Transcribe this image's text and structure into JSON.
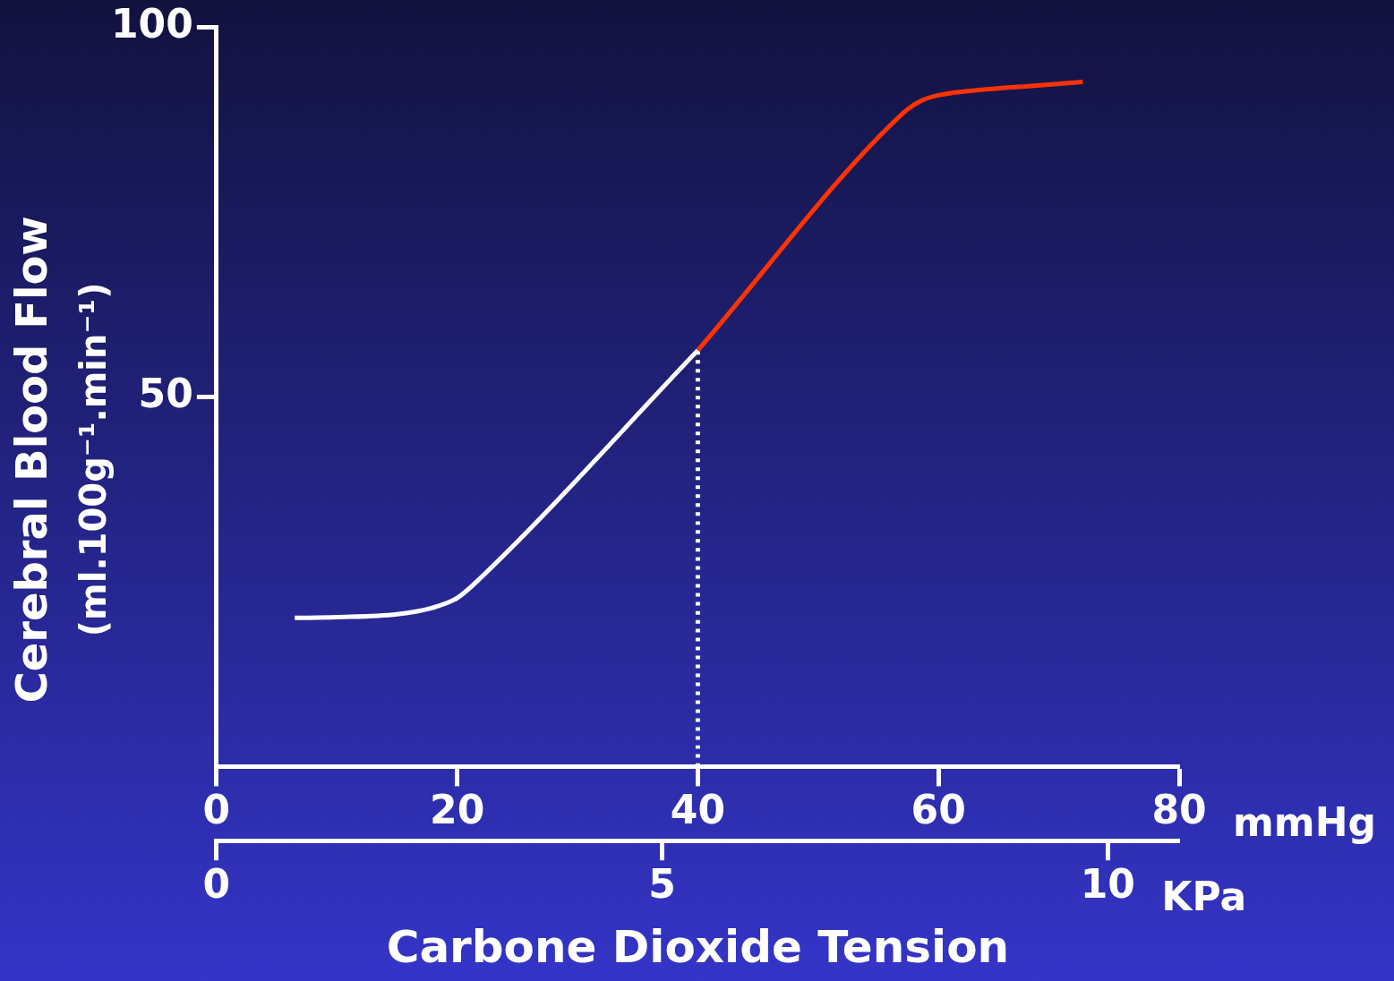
{
  "chart_data": {
    "type": "line",
    "xlabel": "Carbone Dioxide Tension",
    "ylabel": "Cerebral Blood Flow\n(ml.100g⁻¹.min⁻¹)",
    "xlim": [
      0,
      80
    ],
    "xticks": [
      0,
      20,
      40,
      60,
      80
    ],
    "x2lim": [
      0,
      10.8
    ],
    "x2ticks": [
      0,
      5,
      10
    ],
    "ylim": [
      0,
      100
    ],
    "yticks": [
      50,
      100
    ],
    "grid": false,
    "legend": false,
    "marker": "none",
    "annotations": [
      "mmHg",
      "KPa"
    ],
    "series": [
      {
        "color": "#ffffff",
        "x": [
          6.5,
          10,
          15,
          18,
          20,
          22,
          40
        ],
        "values": [
          20.1,
          20.2,
          20.6,
          21.5,
          22.8,
          25.6,
          56.3
        ]
      },
      {
        "color": "#ff3300",
        "x": [
          40,
          57,
          58.5,
          60,
          64,
          68,
          72
        ],
        "values": [
          56.3,
          88.3,
          90,
          90.8,
          91.6,
          92.1,
          92.6
        ]
      },
      {
        "color": "#ffffff",
        "line_style": "dotted",
        "x": [
          40,
          40
        ],
        "values": [
          0,
          56.3
        ]
      }
    ]
  }
}
